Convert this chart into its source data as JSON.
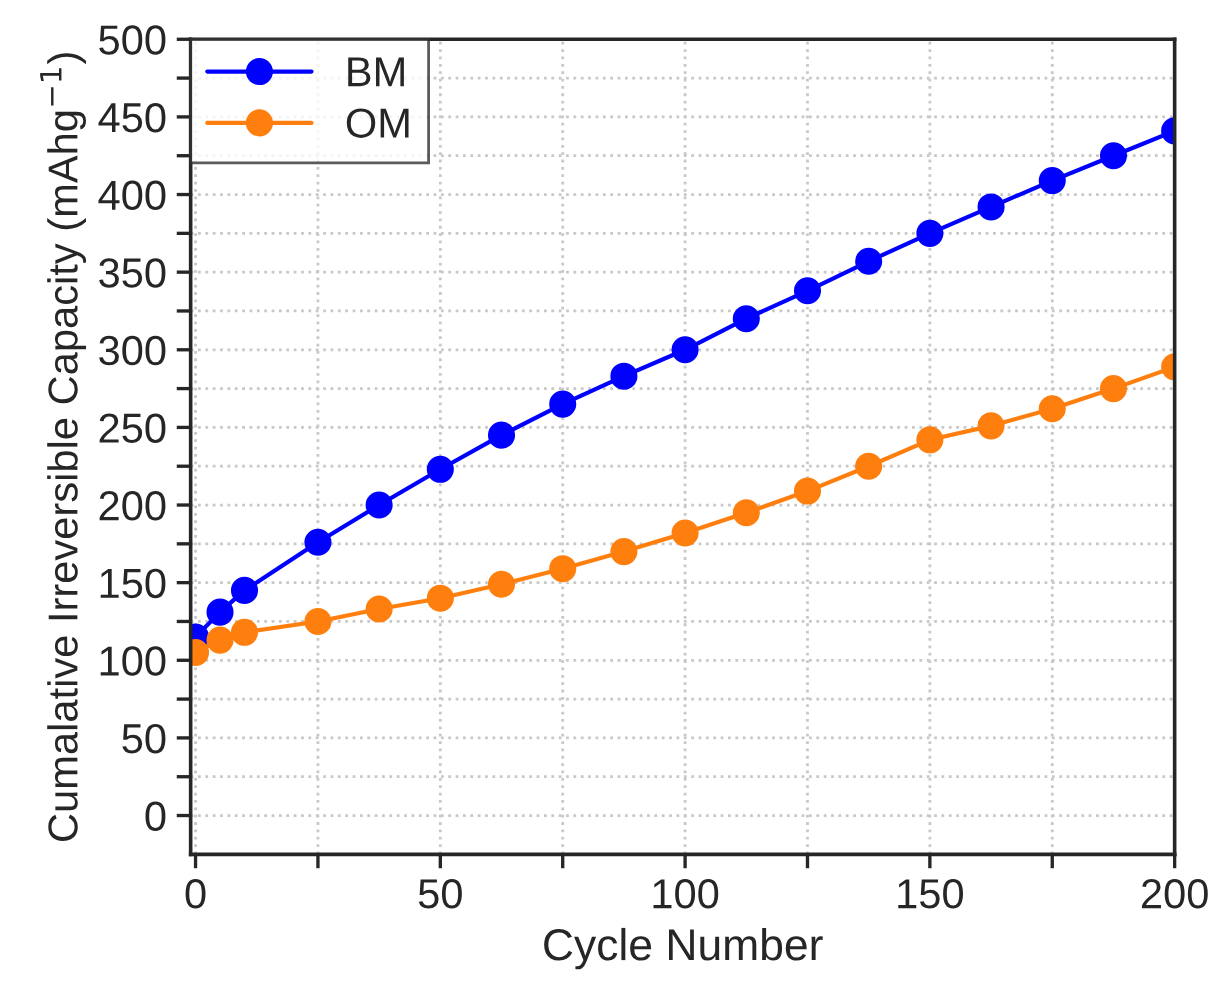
{
  "chart_data": {
    "type": "line",
    "xlabel": "Cycle Number",
    "ylabel": "Cumalative Irreversible Capacity (mAhg$^{−1}$)",
    "xlim": [
      -1,
      200
    ],
    "ylim": [
      -25,
      500
    ],
    "xticks": [
      0,
      {
        "value": 25,
        "label": null
      },
      50,
      {
        "value": 75,
        "label": null
      },
      100,
      {
        "value": 125,
        "label": null
      },
      150,
      {
        "value": 175,
        "label": null
      },
      200
    ],
    "yticks": [
      0,
      {
        "value": 25,
        "label": null
      },
      50,
      {
        "value": 75,
        "label": null
      },
      100,
      {
        "value": 125,
        "label": null
      },
      150,
      {
        "value": 175,
        "label": null
      },
      200,
      {
        "value": 225,
        "label": null
      },
      250,
      {
        "value": 275,
        "label": null
      },
      300,
      {
        "value": 325,
        "label": null
      },
      350,
      {
        "value": 375,
        "label": null
      },
      400,
      {
        "value": 425,
        "label": null
      },
      450,
      {
        "value": 475,
        "label": null
      },
      500
    ],
    "grid": true,
    "legend": "top left",
    "marker": "circle",
    "line_style": "solid",
    "series": [
      {
        "name": "BM",
        "color": "#0000ff",
        "x": [
          0,
          5,
          10,
          25,
          37.5,
          50,
          62.5,
          75,
          87.5,
          100,
          112.5,
          125,
          137.5,
          150,
          162.5,
          175,
          187.5,
          200
        ],
        "values": [
          115,
          131,
          145,
          176,
          200,
          223,
          245,
          265,
          283,
          300,
          320,
          338,
          357,
          375,
          392,
          409,
          425,
          441
        ]
      },
      {
        "name": "OM",
        "color": "#ff7f0e",
        "x": [
          0,
          5,
          10,
          25,
          37.5,
          50,
          62.5,
          75,
          87.5,
          100,
          112.5,
          125,
          137.5,
          150,
          162.5,
          175,
          187.5,
          200
        ],
        "values": [
          105,
          113,
          118,
          125,
          133,
          140,
          149,
          159,
          170,
          182,
          195,
          209,
          225,
          242,
          251,
          262,
          275,
          289
        ]
      }
    ]
  }
}
